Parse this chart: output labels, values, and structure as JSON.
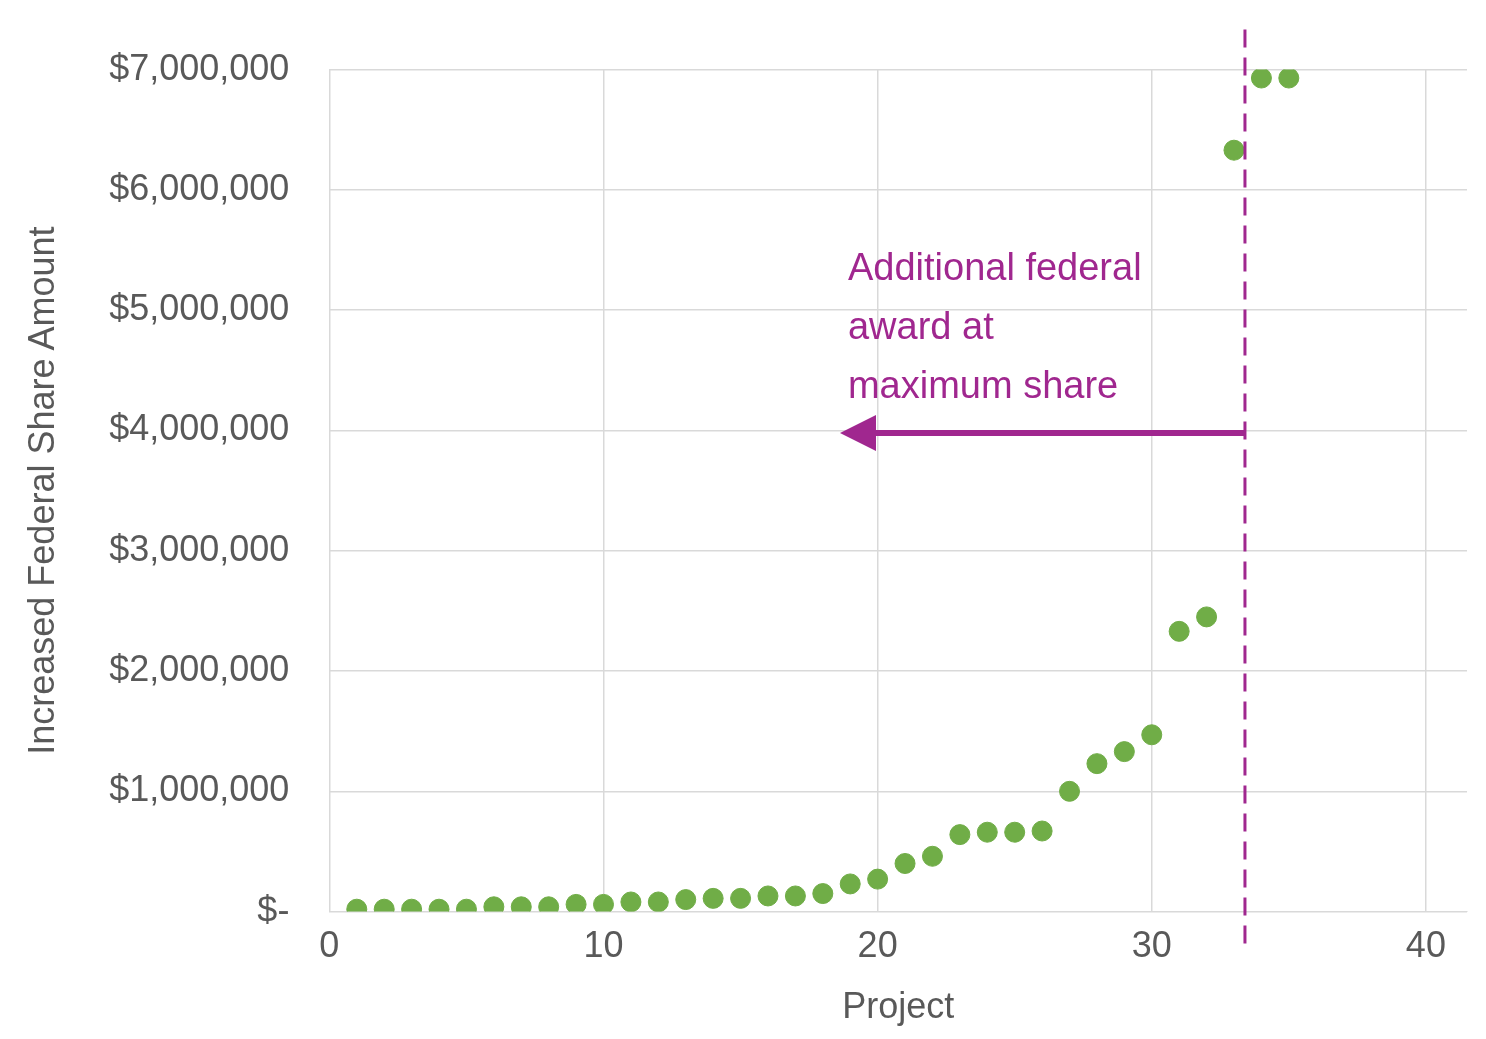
{
  "chart_data": {
    "type": "scatter",
    "xlabel": "Project",
    "ylabel": "Increased Federal Share Amount",
    "x": [
      1,
      2,
      3,
      4,
      5,
      6,
      7,
      8,
      9,
      10,
      11,
      12,
      13,
      14,
      15,
      16,
      17,
      18,
      19,
      20,
      21,
      22,
      23,
      24,
      25,
      26,
      27,
      28,
      29,
      30,
      31,
      32,
      33,
      34,
      35
    ],
    "series": [
      {
        "color": "#70ad47",
        "values": [
          20000,
          20000,
          20000,
          20000,
          20000,
          40000,
          40000,
          40000,
          60000,
          60000,
          80000,
          80000,
          100000,
          110000,
          110000,
          130000,
          130000,
          150000,
          230000,
          270000,
          400000,
          460000,
          640000,
          660000,
          660000,
          670000,
          1000000,
          1230000,
          1330000,
          1470000,
          2330000,
          2450000,
          6330000,
          6930000,
          6930000
        ]
      }
    ],
    "xlim": [
      0,
      41.5
    ],
    "xticks": [
      0,
      10,
      20,
      30,
      40
    ],
    "ylim": [
      0,
      7000000
    ],
    "yticks": [
      {
        "value": 0,
        "label": "$-"
      },
      {
        "value": 1000000,
        "label": "$1,000,000"
      },
      {
        "value": 2000000,
        "label": "$2,000,000"
      },
      {
        "value": 3000000,
        "label": "$3,000,000"
      },
      {
        "value": 4000000,
        "label": "$4,000,000"
      },
      {
        "value": 5000000,
        "label": "$5,000,000"
      },
      {
        "value": 6000000,
        "label": "$6,000,000"
      },
      {
        "value": 7000000,
        "label": "$7,000,000"
      }
    ],
    "grid": true,
    "marker": "circle",
    "legend": false,
    "ref_lines": [
      {
        "axis": "x",
        "value": 33.4,
        "color": "#a0278f",
        "line_style": "dashed"
      }
    ],
    "annotations": [
      "Additional federal award at maximum share"
    ]
  }
}
